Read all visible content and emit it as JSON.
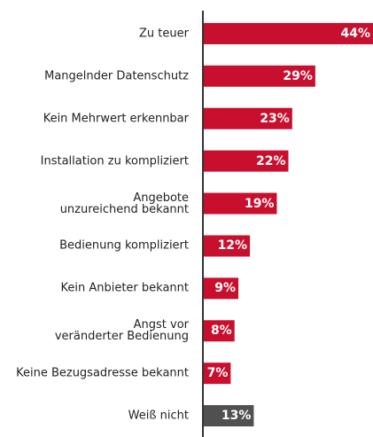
{
  "chart_data": {
    "type": "bar",
    "orientation": "horizontal",
    "categories": [
      "Zu teuer",
      "Mangelnder Datenschutz",
      "Kein Mehrwert erkennbar",
      "Installation zu kompliziert",
      "Angebote\nunzureichend bekannt",
      "Bedienung kompliziert",
      "Kein Anbieter bekannt",
      "Angst vor\nveränderter Bedienung",
      "Keine Bezugsadresse bekannt",
      "Weiß nicht"
    ],
    "values": [
      44,
      29,
      23,
      22,
      19,
      12,
      9,
      8,
      7,
      13
    ],
    "value_labels": [
      "44%",
      "29%",
      "23%",
      "22%",
      "19%",
      "12%",
      "9%",
      "8%",
      "7%",
      "13%"
    ],
    "colors": [
      "#c8102e",
      "#c8102e",
      "#c8102e",
      "#c8102e",
      "#c8102e",
      "#c8102e",
      "#c8102e",
      "#c8102e",
      "#c8102e",
      "#505050"
    ]
  }
}
